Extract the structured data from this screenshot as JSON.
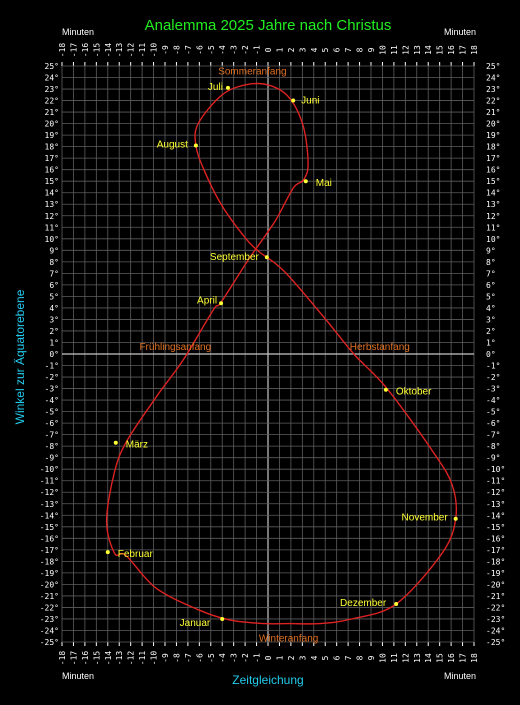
{
  "chart_data": {
    "type": "line",
    "title": "Analemma  2025 Jahre nach Christus",
    "xlabel": "Zeitgleichung",
    "ylabel": "Winkel zur Äquatorebene",
    "x_unit_label": "Minuten",
    "xlim": [
      -18,
      18
    ],
    "ylim": [
      -25,
      25
    ],
    "x_ticks": [
      "-18",
      "-17",
      "-16",
      "-15",
      "-14",
      "-13",
      "-12",
      "-11",
      "-10",
      "-9",
      "-8",
      "-7",
      "-6",
      "-5",
      "-4",
      "-3",
      "-2",
      "-1",
      "0",
      "1",
      "2",
      "3",
      "4",
      "5",
      "6",
      "7",
      "8",
      "9",
      "10",
      "11",
      "12",
      "13",
      "14",
      "15",
      "16",
      "17",
      "18"
    ],
    "y_ticks": [
      "25°",
      "24°",
      "23°",
      "22°",
      "21°",
      "20°",
      "19°",
      "18°",
      "17°",
      "16°",
      "15°",
      "14°",
      "13°",
      "12°",
      "11°",
      "10°",
      "9°",
      "8°",
      "7°",
      "6°",
      "5°",
      "4°",
      "3°",
      "2°",
      "1°",
      "0°",
      "-1°",
      "-2°",
      "-3°",
      "-4°",
      "-5°",
      "-6°",
      "-7°",
      "-8°",
      "-9°",
      "-10°",
      "-11°",
      "-12°",
      "-13°",
      "-14°",
      "-15°",
      "-16°",
      "-17°",
      "-18°",
      "-19°",
      "-20°",
      "-21°",
      "-22°",
      "-23°",
      "-24°",
      "-25°"
    ],
    "grid": true,
    "curve_color": "#dd2222",
    "month_color": "#ffff33",
    "event_color": "#e07020",
    "series": [
      {
        "points": [
          [
            -3.3,
            -23.1
          ],
          [
            -6.1,
            -22.2
          ],
          [
            -9.8,
            -20.3
          ],
          [
            -12.4,
            -17.5
          ],
          [
            -13.4,
            -17.3
          ],
          [
            -14.1,
            -14.5
          ],
          [
            -13.4,
            -10.2
          ],
          [
            -12.3,
            -7.5
          ],
          [
            -9.6,
            -3.5
          ],
          [
            -7.4,
            -0.5
          ],
          [
            -4.8,
            3.8
          ],
          [
            -4.1,
            4.5
          ],
          [
            -1.7,
            8.2
          ],
          [
            0.6,
            11.5
          ],
          [
            2.2,
            14.4
          ],
          [
            3.1,
            15.1
          ],
          [
            3.5,
            16.5
          ],
          [
            3.1,
            19.7
          ],
          [
            1.9,
            22.2
          ],
          [
            0.2,
            23.3
          ],
          [
            -1.8,
            23.4
          ],
          [
            -4.0,
            22.5
          ],
          [
            -6.1,
            20.0
          ],
          [
            -6.3,
            18.1
          ],
          [
            -5.6,
            16.0
          ],
          [
            -4.1,
            13.0
          ],
          [
            -2.0,
            10.1
          ],
          [
            -0.8,
            8.9
          ],
          [
            1.4,
            7.2
          ],
          [
            4.8,
            3.3
          ],
          [
            7.5,
            0.0
          ],
          [
            10.4,
            -3.0
          ],
          [
            14.5,
            -8.6
          ],
          [
            16.1,
            -11.4
          ],
          [
            16.4,
            -14.3
          ],
          [
            15.2,
            -17.3
          ],
          [
            11.2,
            -21.7
          ],
          [
            7.3,
            -23.0
          ],
          [
            4.5,
            -23.4
          ],
          [
            1.8,
            -23.4
          ],
          [
            -0.3,
            -23.4
          ],
          [
            -3.3,
            -23.1
          ]
        ]
      }
    ],
    "month_markers": [
      {
        "label": "Januar",
        "x": -4.0,
        "y": -23.0
      },
      {
        "label": "Februar",
        "x": -14.0,
        "y": -17.2
      },
      {
        "label": "März",
        "x": -13.3,
        "y": -7.7
      },
      {
        "label": "April",
        "x": -4.1,
        "y": 4.4
      },
      {
        "label": "Mai",
        "x": 3.3,
        "y": 15.0
      },
      {
        "label": "Juni",
        "x": 2.2,
        "y": 22.0
      },
      {
        "label": "Juli",
        "x": -3.5,
        "y": 23.1
      },
      {
        "label": "August",
        "x": -6.3,
        "y": 18.1
      },
      {
        "label": "September",
        "x": -0.1,
        "y": 8.4
      },
      {
        "label": "Oktober",
        "x": 10.3,
        "y": -3.1
      },
      {
        "label": "November",
        "x": 16.4,
        "y": -14.3
      },
      {
        "label": "Dezember",
        "x": 11.2,
        "y": -21.7
      }
    ],
    "season_labels": [
      {
        "label": "Sommeranfang",
        "x": -1.8,
        "y": 23.4
      },
      {
        "label": "Frühlingsanfang",
        "x": -7.4,
        "y": 0.0
      },
      {
        "label": "Herbstanfang",
        "x": 7.5,
        "y": 0.0
      },
      {
        "label": "Winteranfang",
        "x": 1.8,
        "y": -23.4
      }
    ]
  }
}
